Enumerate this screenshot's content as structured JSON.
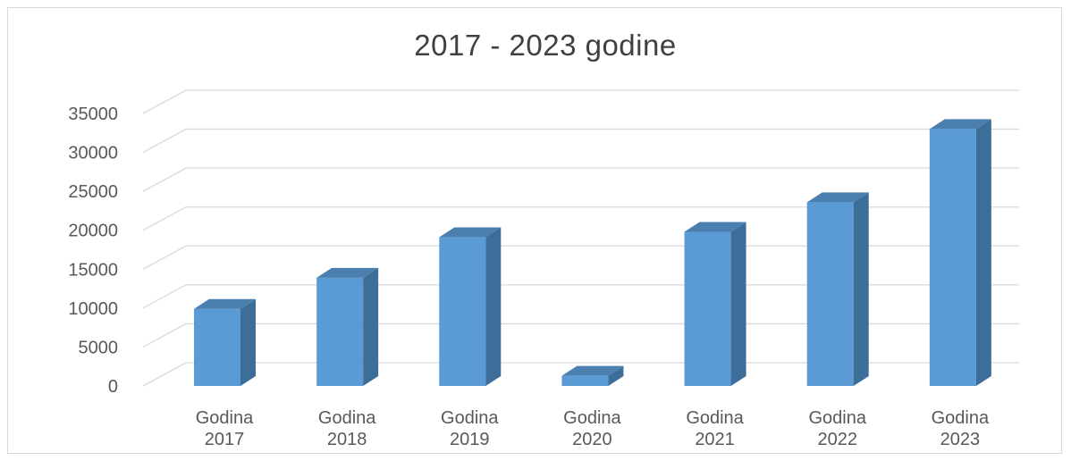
{
  "chart_data": {
    "type": "bar",
    "title": "2017 - 2023 godine",
    "categories": [
      [
        "Godina",
        "2017"
      ],
      [
        "Godina",
        "2018"
      ],
      [
        "Godina",
        "2019"
      ],
      [
        "Godina",
        "2020"
      ],
      [
        "Godina",
        "2021"
      ],
      [
        "Godina",
        "2022"
      ],
      [
        "Godina",
        "2023"
      ]
    ],
    "values": [
      9900,
      13900,
      19100,
      1300,
      19800,
      23600,
      33000
    ],
    "ylim": [
      0,
      35000
    ],
    "yticks": [
      "0",
      "5000",
      "10000",
      "15000",
      "20000",
      "25000",
      "30000",
      "35000"
    ],
    "grid": true,
    "legend": "none",
    "style": "3d-column",
    "colors": {
      "bar_front": "#5b9bd5",
      "bar_side": "#3d6e99",
      "bar_top": "#4a7fb0",
      "grid": "#d9d9d9"
    }
  }
}
